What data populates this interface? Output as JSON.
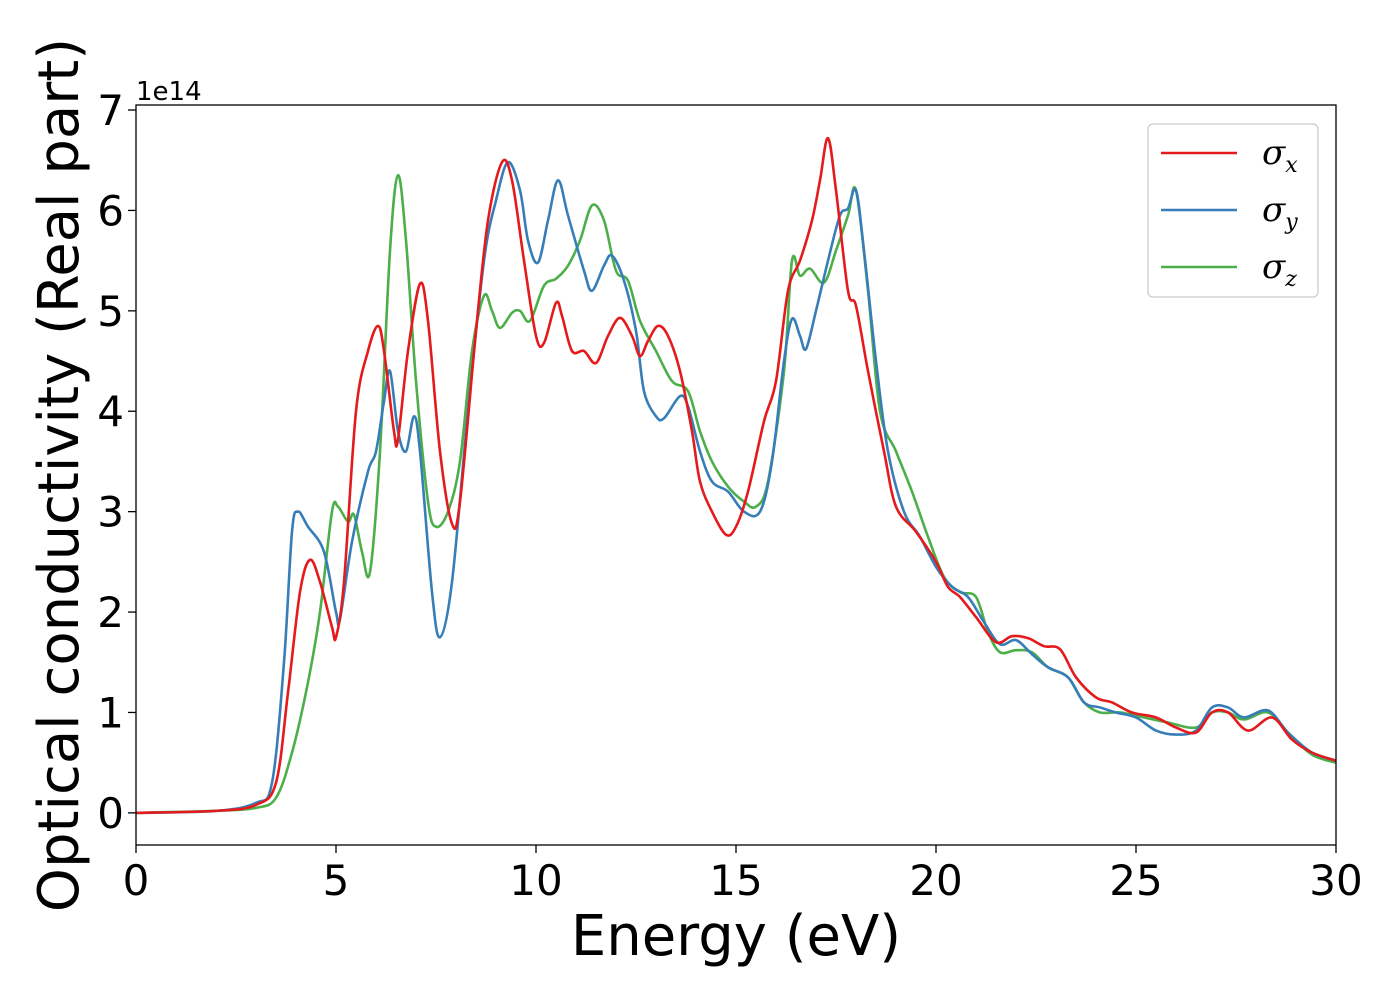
{
  "chart_data": {
    "type": "line",
    "xlabel": "Energy (eV)",
    "ylabel": "Optical conductivity (Real part)",
    "y_offset_label": "1e14",
    "xlim": [
      0,
      30
    ],
    "ylim": [
      -0.32,
      7.05
    ],
    "x_ticks": [
      0,
      5,
      10,
      15,
      20,
      25,
      30
    ],
    "x_tick_labels": [
      "0",
      "5",
      "10",
      "15",
      "20",
      "25",
      "30"
    ],
    "y_ticks": [
      0,
      1,
      2,
      3,
      4,
      5,
      6,
      7
    ],
    "y_tick_labels": [
      "0",
      "1",
      "2",
      "3",
      "4",
      "5",
      "6",
      "7"
    ],
    "grid": false,
    "legend_position": "top-right",
    "series": [
      {
        "name": "σ",
        "subscript": "x",
        "color": "#e41a1c",
        "points": [
          [
            0,
            0
          ],
          [
            2,
            0.02
          ],
          [
            3,
            0.08
          ],
          [
            3.5,
            0.3
          ],
          [
            3.8,
            1.2
          ],
          [
            4.1,
            2.2
          ],
          [
            4.35,
            2.52
          ],
          [
            4.6,
            2.3
          ],
          [
            4.9,
            1.85
          ],
          [
            5.0,
            1.75
          ],
          [
            5.2,
            2.3
          ],
          [
            5.5,
            4.0
          ],
          [
            5.8,
            4.6
          ],
          [
            6.05,
            4.85
          ],
          [
            6.2,
            4.6
          ],
          [
            6.45,
            3.8
          ],
          [
            6.55,
            3.72
          ],
          [
            6.8,
            4.6
          ],
          [
            7.1,
            5.27
          ],
          [
            7.3,
            4.9
          ],
          [
            7.6,
            3.6
          ],
          [
            7.9,
            2.88
          ],
          [
            8.1,
            3.1
          ],
          [
            8.5,
            4.8
          ],
          [
            8.8,
            5.9
          ],
          [
            9.15,
            6.48
          ],
          [
            9.4,
            6.3
          ],
          [
            9.7,
            5.5
          ],
          [
            10.0,
            4.75
          ],
          [
            10.2,
            4.68
          ],
          [
            10.5,
            5.08
          ],
          [
            10.65,
            4.95
          ],
          [
            10.9,
            4.6
          ],
          [
            11.2,
            4.6
          ],
          [
            11.5,
            4.48
          ],
          [
            11.8,
            4.75
          ],
          [
            12.1,
            4.93
          ],
          [
            12.4,
            4.75
          ],
          [
            12.6,
            4.55
          ],
          [
            12.8,
            4.7
          ],
          [
            13.05,
            4.85
          ],
          [
            13.3,
            4.75
          ],
          [
            13.6,
            4.4
          ],
          [
            13.9,
            3.8
          ],
          [
            14.1,
            3.3
          ],
          [
            14.4,
            3.0
          ],
          [
            14.75,
            2.77
          ],
          [
            15.0,
            2.85
          ],
          [
            15.3,
            3.2
          ],
          [
            15.7,
            3.9
          ],
          [
            16.0,
            4.3
          ],
          [
            16.3,
            5.2
          ],
          [
            16.6,
            5.5
          ],
          [
            16.9,
            5.9
          ],
          [
            17.1,
            6.3
          ],
          [
            17.3,
            6.72
          ],
          [
            17.5,
            6.2
          ],
          [
            17.8,
            5.2
          ],
          [
            18.0,
            5.05
          ],
          [
            18.3,
            4.4
          ],
          [
            18.7,
            3.6
          ],
          [
            19.0,
            3.05
          ],
          [
            19.5,
            2.8
          ],
          [
            20.0,
            2.5
          ],
          [
            20.3,
            2.25
          ],
          [
            20.6,
            2.15
          ],
          [
            21.0,
            1.95
          ],
          [
            21.5,
            1.7
          ],
          [
            21.9,
            1.76
          ],
          [
            22.3,
            1.74
          ],
          [
            22.7,
            1.66
          ],
          [
            23.1,
            1.63
          ],
          [
            23.5,
            1.35
          ],
          [
            24.0,
            1.15
          ],
          [
            24.4,
            1.1
          ],
          [
            24.9,
            1.0
          ],
          [
            25.5,
            0.95
          ],
          [
            26.0,
            0.85
          ],
          [
            26.5,
            0.8
          ],
          [
            26.9,
            1.0
          ],
          [
            27.3,
            1.0
          ],
          [
            27.8,
            0.82
          ],
          [
            28.4,
            0.95
          ],
          [
            28.9,
            0.73
          ],
          [
            29.4,
            0.6
          ],
          [
            30.0,
            0.52
          ]
        ]
      },
      {
        "name": "σ",
        "subscript": "y",
        "color": "#377eb8",
        "points": [
          [
            0,
            0
          ],
          [
            2,
            0.02
          ],
          [
            3,
            0.1
          ],
          [
            3.4,
            0.3
          ],
          [
            3.7,
            1.5
          ],
          [
            3.9,
            2.8
          ],
          [
            4.05,
            3.0
          ],
          [
            4.3,
            2.85
          ],
          [
            4.7,
            2.6
          ],
          [
            5.0,
            2.0
          ],
          [
            5.1,
            1.93
          ],
          [
            5.4,
            2.7
          ],
          [
            5.8,
            3.4
          ],
          [
            6.0,
            3.6
          ],
          [
            6.2,
            4.1
          ],
          [
            6.35,
            4.4
          ],
          [
            6.55,
            3.8
          ],
          [
            6.75,
            3.6
          ],
          [
            6.95,
            3.95
          ],
          [
            7.1,
            3.6
          ],
          [
            7.4,
            2.2
          ],
          [
            7.6,
            1.75
          ],
          [
            7.9,
            2.3
          ],
          [
            8.3,
            4.0
          ],
          [
            8.7,
            5.5
          ],
          [
            9.0,
            6.1
          ],
          [
            9.3,
            6.48
          ],
          [
            9.6,
            6.2
          ],
          [
            9.8,
            5.7
          ],
          [
            10.05,
            5.48
          ],
          [
            10.3,
            5.9
          ],
          [
            10.55,
            6.3
          ],
          [
            10.8,
            5.95
          ],
          [
            11.2,
            5.4
          ],
          [
            11.4,
            5.2
          ],
          [
            11.7,
            5.45
          ],
          [
            11.9,
            5.55
          ],
          [
            12.2,
            5.3
          ],
          [
            12.5,
            4.8
          ],
          [
            12.7,
            4.2
          ],
          [
            13.0,
            3.95
          ],
          [
            13.2,
            3.93
          ],
          [
            13.6,
            4.15
          ],
          [
            13.8,
            4.05
          ],
          [
            14.1,
            3.6
          ],
          [
            14.4,
            3.3
          ],
          [
            14.8,
            3.2
          ],
          [
            15.2,
            3.0
          ],
          [
            15.6,
            3.0
          ],
          [
            15.9,
            3.5
          ],
          [
            16.2,
            4.5
          ],
          [
            16.4,
            4.92
          ],
          [
            16.6,
            4.75
          ],
          [
            16.75,
            4.62
          ],
          [
            17.0,
            5.0
          ],
          [
            17.3,
            5.5
          ],
          [
            17.6,
            5.95
          ],
          [
            17.8,
            6.02
          ],
          [
            18.0,
            6.2
          ],
          [
            18.2,
            5.6
          ],
          [
            18.5,
            4.5
          ],
          [
            18.8,
            3.6
          ],
          [
            19.2,
            3.0
          ],
          [
            19.6,
            2.75
          ],
          [
            20.0,
            2.45
          ],
          [
            20.4,
            2.25
          ],
          [
            20.8,
            2.15
          ],
          [
            21.2,
            1.9
          ],
          [
            21.6,
            1.68
          ],
          [
            22.0,
            1.72
          ],
          [
            22.4,
            1.58
          ],
          [
            22.8,
            1.45
          ],
          [
            23.3,
            1.35
          ],
          [
            23.7,
            1.1
          ],
          [
            24.1,
            1.05
          ],
          [
            24.5,
            1.0
          ],
          [
            25.0,
            0.95
          ],
          [
            25.5,
            0.82
          ],
          [
            26.0,
            0.78
          ],
          [
            26.5,
            0.82
          ],
          [
            26.9,
            1.05
          ],
          [
            27.3,
            1.05
          ],
          [
            27.7,
            0.95
          ],
          [
            28.3,
            1.02
          ],
          [
            28.8,
            0.8
          ],
          [
            29.4,
            0.6
          ],
          [
            30.0,
            0.52
          ]
        ]
      },
      {
        "name": "σ",
        "subscript": "z",
        "color": "#4daf4a",
        "points": [
          [
            0,
            0
          ],
          [
            2,
            0.02
          ],
          [
            3,
            0.05
          ],
          [
            3.5,
            0.15
          ],
          [
            3.9,
            0.6
          ],
          [
            4.3,
            1.3
          ],
          [
            4.6,
            2.0
          ],
          [
            4.9,
            3.0
          ],
          [
            5.05,
            3.05
          ],
          [
            5.3,
            2.9
          ],
          [
            5.45,
            2.97
          ],
          [
            5.65,
            2.6
          ],
          [
            5.85,
            2.4
          ],
          [
            6.1,
            3.6
          ],
          [
            6.35,
            5.6
          ],
          [
            6.55,
            6.35
          ],
          [
            6.75,
            5.7
          ],
          [
            7.0,
            4.3
          ],
          [
            7.3,
            3.1
          ],
          [
            7.5,
            2.85
          ],
          [
            7.8,
            3.0
          ],
          [
            8.1,
            3.5
          ],
          [
            8.4,
            4.6
          ],
          [
            8.7,
            5.15
          ],
          [
            8.9,
            5.0
          ],
          [
            9.1,
            4.83
          ],
          [
            9.4,
            4.98
          ],
          [
            9.6,
            5.0
          ],
          [
            9.85,
            4.9
          ],
          [
            10.2,
            5.25
          ],
          [
            10.5,
            5.32
          ],
          [
            10.8,
            5.45
          ],
          [
            11.1,
            5.7
          ],
          [
            11.4,
            6.05
          ],
          [
            11.7,
            5.9
          ],
          [
            12.0,
            5.4
          ],
          [
            12.3,
            5.3
          ],
          [
            12.6,
            4.9
          ],
          [
            13.0,
            4.6
          ],
          [
            13.4,
            4.3
          ],
          [
            13.8,
            4.2
          ],
          [
            14.1,
            3.8
          ],
          [
            14.4,
            3.5
          ],
          [
            14.8,
            3.25
          ],
          [
            15.2,
            3.1
          ],
          [
            15.5,
            3.05
          ],
          [
            15.8,
            3.3
          ],
          [
            16.2,
            4.4
          ],
          [
            16.4,
            5.5
          ],
          [
            16.6,
            5.35
          ],
          [
            16.85,
            5.42
          ],
          [
            17.2,
            5.28
          ],
          [
            17.5,
            5.6
          ],
          [
            17.8,
            5.95
          ],
          [
            18.0,
            6.2
          ],
          [
            18.3,
            5.2
          ],
          [
            18.6,
            4.0
          ],
          [
            19.0,
            3.6
          ],
          [
            19.4,
            3.2
          ],
          [
            19.8,
            2.75
          ],
          [
            20.2,
            2.35
          ],
          [
            20.6,
            2.2
          ],
          [
            21.0,
            2.15
          ],
          [
            21.3,
            1.8
          ],
          [
            21.6,
            1.6
          ],
          [
            22.0,
            1.62
          ],
          [
            22.4,
            1.6
          ],
          [
            22.8,
            1.45
          ],
          [
            23.3,
            1.35
          ],
          [
            23.7,
            1.1
          ],
          [
            24.1,
            1.0
          ],
          [
            24.6,
            1.0
          ],
          [
            25.2,
            0.95
          ],
          [
            25.8,
            0.9
          ],
          [
            26.5,
            0.85
          ],
          [
            26.9,
            1.0
          ],
          [
            27.3,
            1.0
          ],
          [
            27.7,
            0.93
          ],
          [
            28.3,
            1.0
          ],
          [
            28.8,
            0.8
          ],
          [
            29.4,
            0.58
          ],
          [
            30.0,
            0.5
          ]
        ]
      }
    ]
  }
}
